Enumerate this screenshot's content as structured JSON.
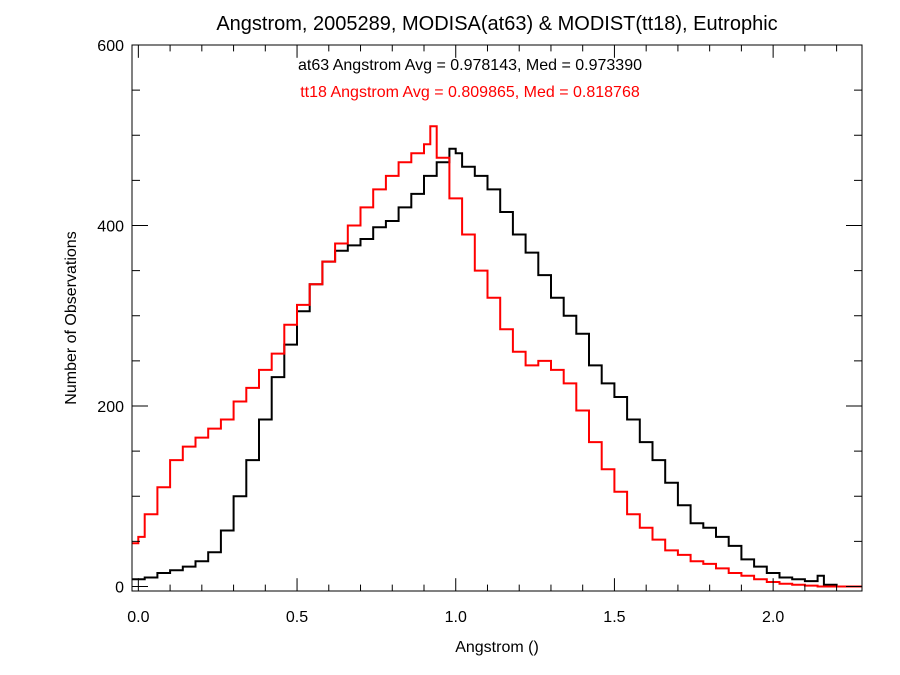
{
  "chart_data": {
    "type": "line",
    "title": "Angstrom, 2005289, MODISA(at63) & MODIST(tt18), Eutrophic",
    "xlabel": "Angstrom ()",
    "ylabel": "Number of Observations",
    "xlim": [
      -0.02,
      2.28
    ],
    "ylim": [
      -5,
      600
    ],
    "x_ticks": [
      0.0,
      0.5,
      1.0,
      1.5,
      2.0
    ],
    "x_tick_labels": [
      "0.0",
      "0.5",
      "1.0",
      "1.5",
      "2.0"
    ],
    "y_ticks": [
      0,
      200,
      400,
      600
    ],
    "y_tick_labels": [
      "0",
      "200",
      "400",
      "600"
    ],
    "grid": false,
    "step": true,
    "annotations": [
      {
        "text": "at63 Angstrom Avg = 0.978143, Med = 0.973390",
        "color": "#000000"
      },
      {
        "text": "tt18 Angstrom Avg = 0.809865, Med = 0.818768",
        "color": "#ff0000"
      }
    ],
    "series": [
      {
        "color": "#000000",
        "x": [
          -0.02,
          0.02,
          0.06,
          0.1,
          0.14,
          0.18,
          0.22,
          0.26,
          0.3,
          0.34,
          0.38,
          0.42,
          0.46,
          0.5,
          0.54,
          0.58,
          0.62,
          0.66,
          0.7,
          0.74,
          0.78,
          0.82,
          0.86,
          0.9,
          0.94,
          0.98,
          1.0,
          1.02,
          1.06,
          1.1,
          1.14,
          1.18,
          1.22,
          1.26,
          1.3,
          1.34,
          1.38,
          1.42,
          1.46,
          1.5,
          1.54,
          1.58,
          1.62,
          1.66,
          1.7,
          1.74,
          1.78,
          1.82,
          1.86,
          1.9,
          1.94,
          1.98,
          2.02,
          2.06,
          2.1,
          2.14,
          2.16,
          2.2,
          2.28
        ],
        "values": [
          8,
          10,
          15,
          18,
          22,
          28,
          38,
          62,
          100,
          140,
          185,
          232,
          268,
          305,
          335,
          360,
          372,
          378,
          385,
          398,
          405,
          420,
          435,
          455,
          470,
          485,
          480,
          465,
          455,
          440,
          415,
          390,
          370,
          345,
          320,
          300,
          280,
          245,
          225,
          210,
          185,
          160,
          140,
          115,
          90,
          70,
          65,
          55,
          45,
          30,
          22,
          15,
          10,
          8,
          6,
          12,
          2,
          0,
          0
        ]
      },
      {
        "color": "#ff0000",
        "x": [
          -0.02,
          0.0,
          0.02,
          0.06,
          0.1,
          0.14,
          0.18,
          0.22,
          0.26,
          0.3,
          0.34,
          0.38,
          0.42,
          0.46,
          0.5,
          0.54,
          0.58,
          0.62,
          0.66,
          0.7,
          0.74,
          0.78,
          0.82,
          0.86,
          0.9,
          0.92,
          0.94,
          0.98,
          1.02,
          1.06,
          1.1,
          1.14,
          1.18,
          1.22,
          1.26,
          1.3,
          1.34,
          1.38,
          1.42,
          1.46,
          1.5,
          1.54,
          1.58,
          1.62,
          1.66,
          1.7,
          1.74,
          1.78,
          1.82,
          1.86,
          1.9,
          1.94,
          1.98,
          2.02,
          2.06,
          2.1,
          2.14,
          2.18,
          2.28
        ],
        "values": [
          48,
          55,
          80,
          110,
          140,
          155,
          165,
          175,
          185,
          205,
          220,
          240,
          258,
          290,
          312,
          335,
          360,
          380,
          400,
          420,
          440,
          455,
          470,
          480,
          490,
          510,
          475,
          430,
          390,
          350,
          320,
          285,
          260,
          245,
          250,
          240,
          225,
          195,
          160,
          130,
          105,
          80,
          65,
          52,
          40,
          35,
          28,
          25,
          20,
          15,
          12,
          8,
          5,
          3,
          2,
          1,
          0,
          0,
          0
        ]
      }
    ]
  }
}
